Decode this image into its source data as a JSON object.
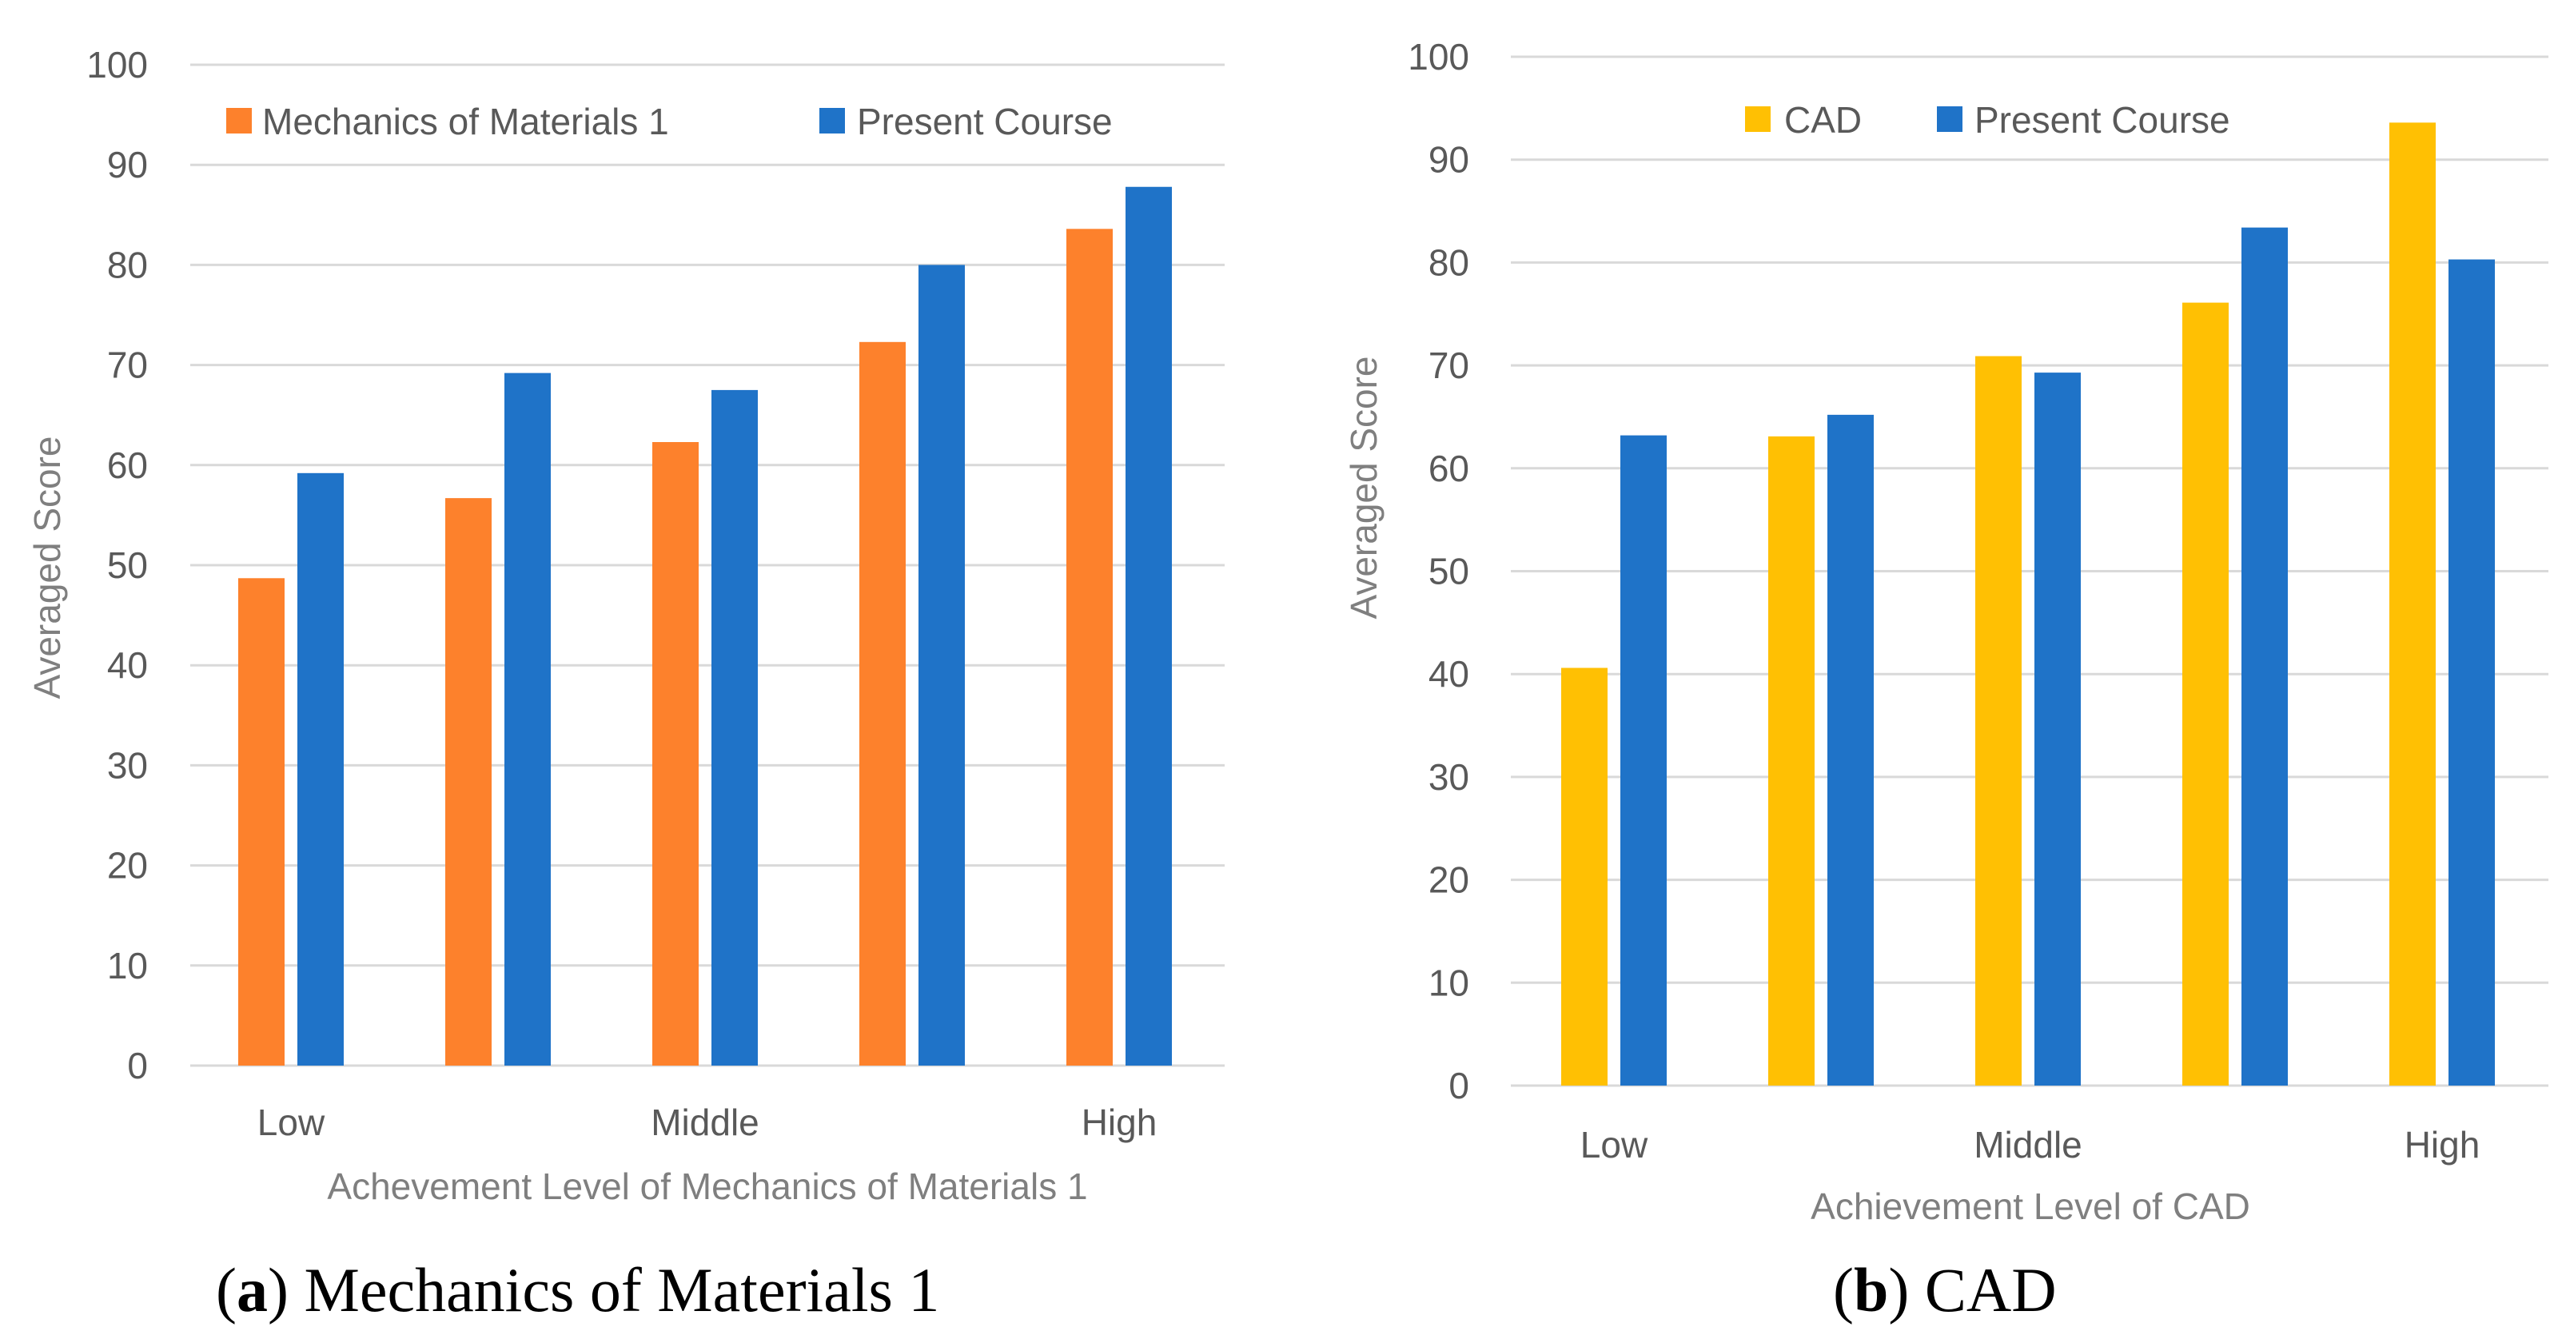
{
  "chart_data": [
    {
      "type": "bar",
      "caption": {
        "open": "(",
        "letter": "a",
        "close": ")",
        "text": " Mechanics of Materials 1"
      },
      "xlabel": "Achevement Level of Mechanics of Materials 1",
      "ylabel": "Averaged Score",
      "ylim": [
        0,
        100
      ],
      "yticks": [
        0,
        10,
        20,
        30,
        40,
        50,
        60,
        70,
        80,
        90,
        100
      ],
      "grid": true,
      "legend_position": "top",
      "categories": [
        "Low",
        "",
        "Middle",
        "",
        "High"
      ],
      "series": [
        {
          "name": "Mechanics of Materials 1",
          "color": "#fd812c",
          "values": [
            48.7,
            56.7,
            62.3,
            72.3,
            83.6
          ]
        },
        {
          "name": "Present Course",
          "color": "#1f73c8",
          "values": [
            59.2,
            69.2,
            67.5,
            80.0,
            87.8
          ]
        }
      ]
    },
    {
      "type": "bar",
      "caption": {
        "open": "(",
        "letter": "b",
        "close": ")",
        "text": " CAD"
      },
      "xlabel": "Achievement Level of CAD",
      "ylabel": "Averaged Score",
      "ylim": [
        0,
        100
      ],
      "yticks": [
        0,
        10,
        20,
        30,
        40,
        50,
        60,
        70,
        80,
        90,
        100
      ],
      "grid": true,
      "legend_position": "top",
      "categories": [
        "Low",
        "",
        "Middle",
        "",
        "High"
      ],
      "series": [
        {
          "name": "CAD",
          "color": "#ffc003",
          "values": [
            40.6,
            63.1,
            70.9,
            76.1,
            93.6
          ]
        },
        {
          "name": "Present Course",
          "color": "#1f73c8",
          "values": [
            63.2,
            65.2,
            69.3,
            83.4,
            80.3
          ]
        }
      ]
    }
  ]
}
